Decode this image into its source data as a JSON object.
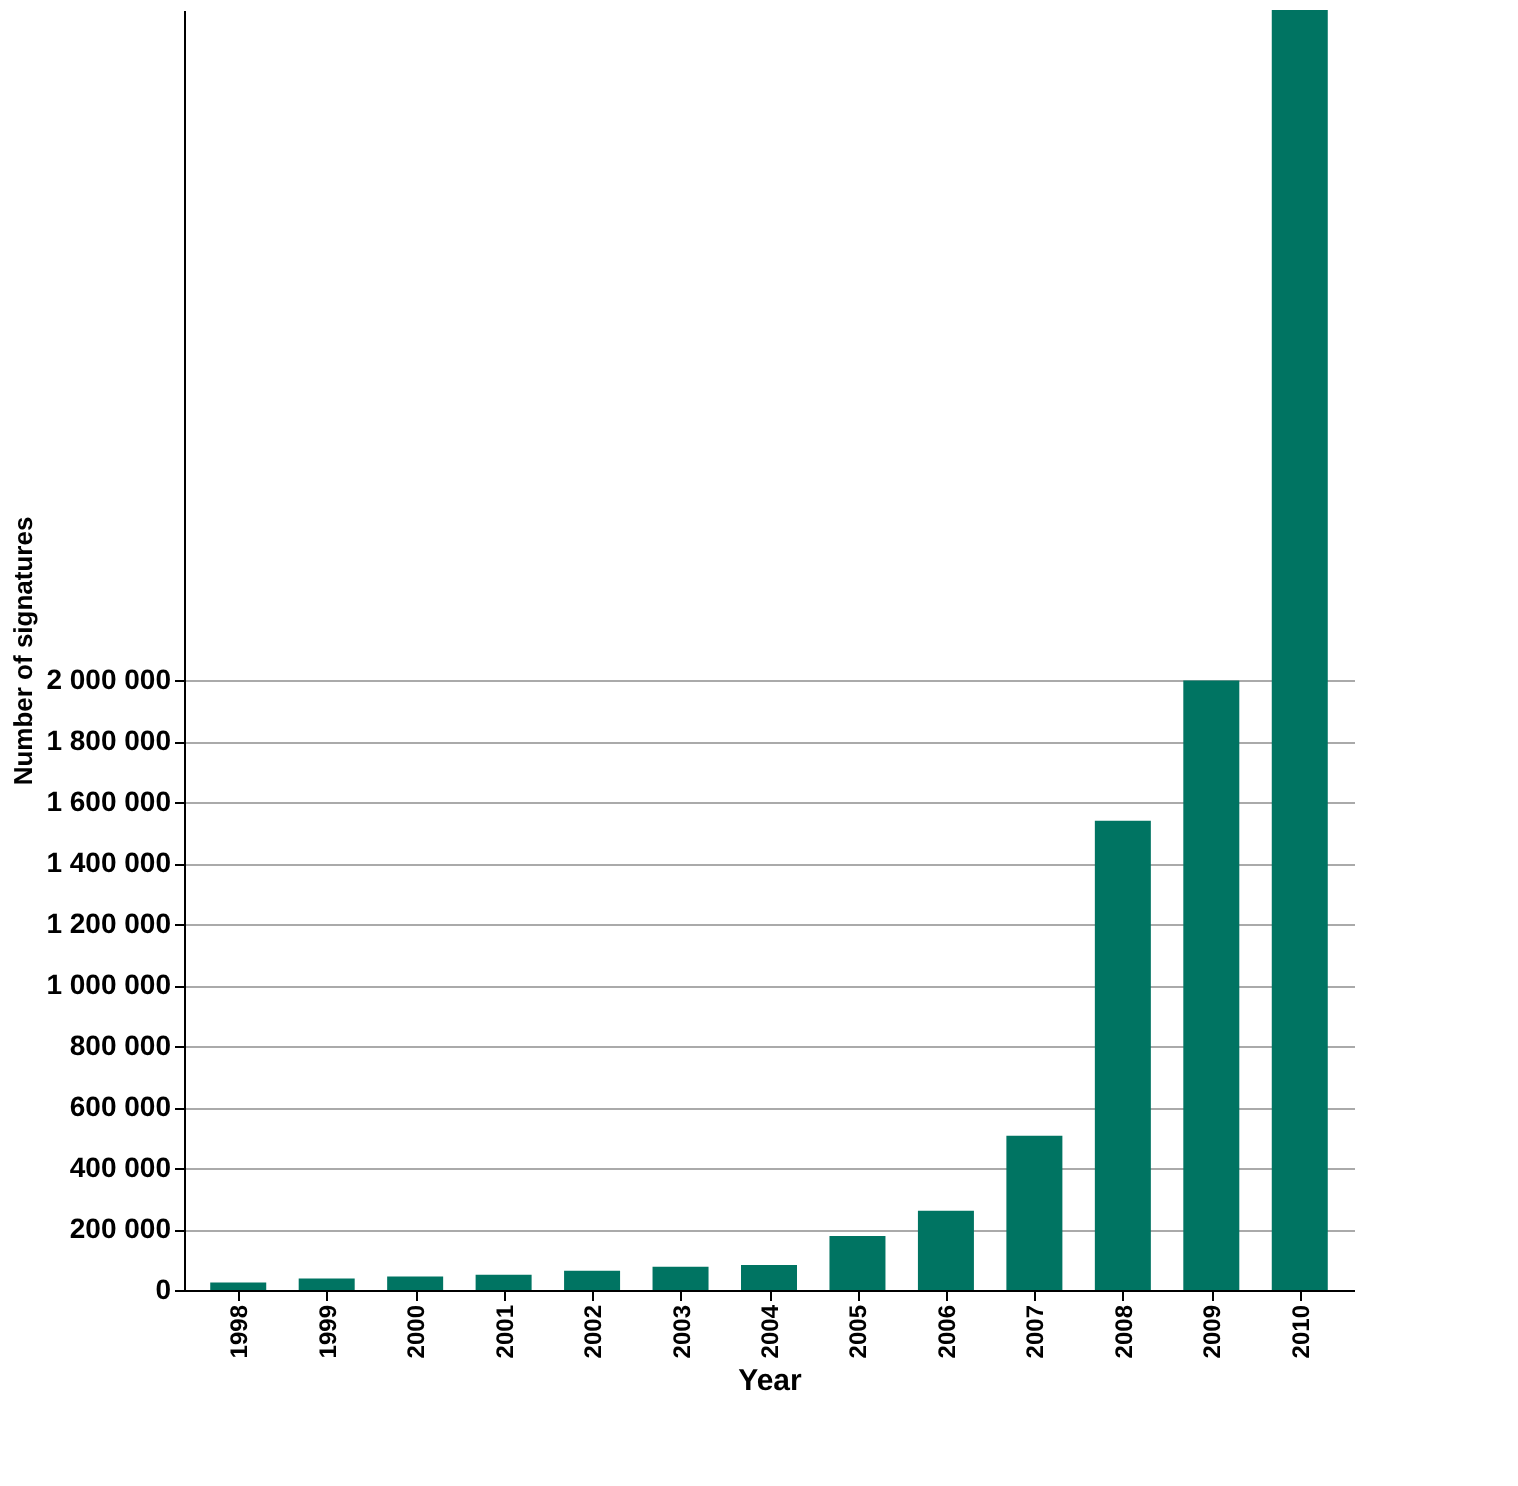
{
  "chart_data": {
    "type": "bar",
    "xlabel": "Year",
    "ylabel": "Number of signatures",
    "categories": [
      "1998",
      "1999",
      "2000",
      "2001",
      "2002",
      "2003",
      "2004",
      "2005",
      "2006",
      "2007",
      "2008",
      "2009",
      "2010"
    ],
    "values": [
      25000,
      38000,
      44000,
      50000,
      63000,
      76000,
      82000,
      177000,
      260000,
      506000,
      1540000,
      2000000,
      4200000
    ],
    "color": "#007462",
    "ylim": [
      0,
      4200000
    ],
    "yticks": [
      {
        "value": 0,
        "label": "0"
      },
      {
        "value": 200000,
        "label": "200 000"
      },
      {
        "value": 400000,
        "label": "400 000"
      },
      {
        "value": 600000,
        "label": "600 000"
      },
      {
        "value": 800000,
        "label": "800 000"
      },
      {
        "value": 1000000,
        "label": "1 000 000"
      },
      {
        "value": 1200000,
        "label": "1 200 000"
      },
      {
        "value": 1400000,
        "label": "1 400 000"
      },
      {
        "value": 1600000,
        "label": "1 600 000"
      },
      {
        "value": 1800000,
        "label": "1 800 000"
      },
      {
        "value": 2000000,
        "label": "2 000 000"
      }
    ],
    "grid": "y"
  }
}
